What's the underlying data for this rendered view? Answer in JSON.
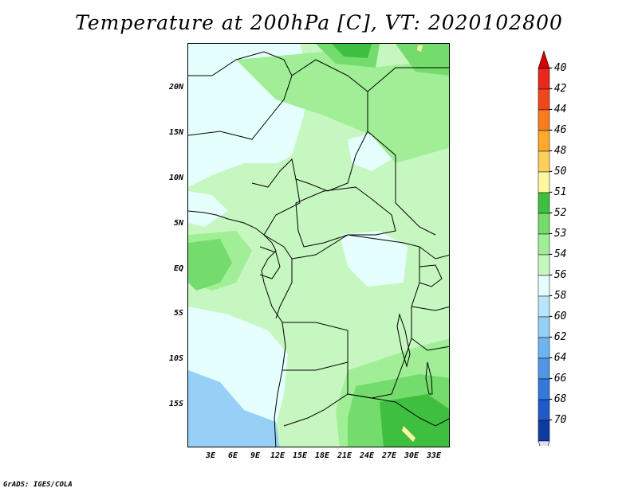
{
  "title": "Temperature at 200hPa [C], VT: 2020102800",
  "footer": "GrADS: IGES/COLA",
  "y_ticks": [
    "20N",
    "15N",
    "10N",
    "5N",
    "EQ",
    "5S",
    "10S",
    "15S"
  ],
  "x_ticks": [
    "3E",
    "6E",
    "9E",
    "12E",
    "15E",
    "18E",
    "21E",
    "24E",
    "27E",
    "30E",
    "33E"
  ],
  "legend": [
    {
      "label": "-40",
      "color": "#e8281e"
    },
    {
      "label": "-42",
      "color": "#f0461c"
    },
    {
      "label": "-44",
      "color": "#f87d1e"
    },
    {
      "label": "-46",
      "color": "#fca92c"
    },
    {
      "label": "-48",
      "color": "#fdd05d"
    },
    {
      "label": "-50",
      "color": "#fef7a0"
    },
    {
      "label": "-51",
      "color": "#3fbf3f"
    },
    {
      "label": "-52",
      "color": "#74dc6c"
    },
    {
      "label": "-53",
      "color": "#a0ee96"
    },
    {
      "label": "-54",
      "color": "#c7f7c0"
    },
    {
      "label": "-56",
      "color": "#e4fffe"
    },
    {
      "label": "-58",
      "color": "#b7e6fb"
    },
    {
      "label": "-60",
      "color": "#96d0f7"
    },
    {
      "label": "-62",
      "color": "#6eb4f0"
    },
    {
      "label": "-64",
      "color": "#4f96e6"
    },
    {
      "label": "-66",
      "color": "#3478dc"
    },
    {
      "label": "-68",
      "color": "#1e5ac8"
    },
    {
      "label": "-70",
      "color": "#0f3aa0"
    }
  ],
  "legend_under_color": "#0a1e78",
  "legend_over_color": "#d60000",
  "legend_end_color": "#e0e0f8",
  "colors": {
    "background": "#ffffff",
    "land_default": "#c7f7c0",
    "pale": "#e4fffe",
    "mid_green": "#a0ee96",
    "green": "#74dc6c",
    "dark_green": "#3fbf3f",
    "light_blue": "#96d0f7",
    "border": "#000000"
  }
}
